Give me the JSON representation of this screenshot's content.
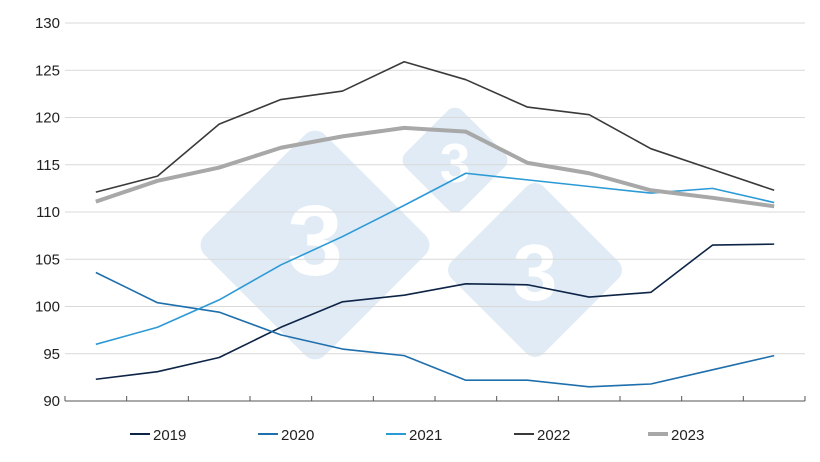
{
  "chart_data": {
    "type": "line",
    "title": "",
    "xlabel": "",
    "ylabel": "",
    "ylim": [
      90,
      130
    ],
    "yticks": [
      90,
      95,
      100,
      105,
      110,
      115,
      120,
      125,
      130
    ],
    "x": [
      1,
      2,
      3,
      4,
      5,
      6,
      7,
      8,
      9,
      10,
      11,
      12
    ],
    "grid": "horizontal",
    "legend": "bottom",
    "watermark": "3",
    "series": [
      {
        "name": "2019",
        "color": "#0d2447",
        "values": [
          92.3,
          93.1,
          94.6,
          97.8,
          100.5,
          101.2,
          102.4,
          102.3,
          101.0,
          101.5,
          106.5,
          106.6
        ]
      },
      {
        "name": "2020",
        "color": "#1f6fad",
        "values": [
          103.6,
          100.4,
          99.4,
          97.0,
          95.5,
          94.8,
          92.2,
          92.2,
          91.5,
          91.8,
          93.3,
          94.8
        ]
      },
      {
        "name": "2021",
        "color": "#2c9ad6",
        "values": [
          96.0,
          97.8,
          100.7,
          104.4,
          107.4,
          110.7,
          114.1,
          113.4,
          112.7,
          112.0,
          112.5,
          111.0
        ]
      },
      {
        "name": "2022",
        "color": "#3a3a3a",
        "values": [
          112.1,
          113.8,
          119.3,
          121.9,
          122.8,
          125.9,
          124.0,
          121.1,
          120.3,
          116.7,
          114.5,
          112.3
        ]
      },
      {
        "name": "2023",
        "color": "#a8a8a8",
        "values": [
          111.1,
          113.3,
          114.7,
          116.8,
          118.0,
          118.9,
          118.5,
          115.2,
          114.1,
          112.3,
          111.5,
          110.6
        ]
      }
    ]
  }
}
